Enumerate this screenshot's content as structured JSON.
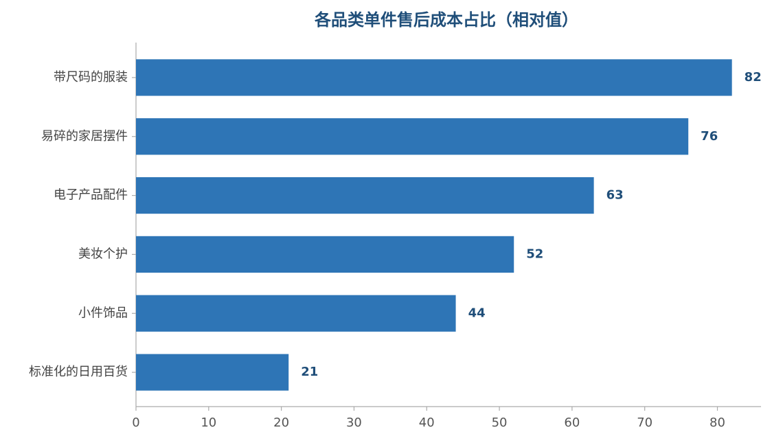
{
  "chart_data": {
    "type": "barh",
    "title": "各品类单件售后成本占比（相对值）",
    "categories": [
      "带尺码的服装",
      "易碎的家居摆件",
      "电子产品配件",
      "美妆个护",
      "小件饰品",
      "标准化的日用百货"
    ],
    "values": [
      82,
      76,
      63,
      52,
      44,
      21
    ],
    "color": "#2e75b6",
    "xlim": [
      0,
      86
    ],
    "xticks": [
      0,
      10,
      20,
      30,
      40,
      50,
      60,
      70,
      80
    ],
    "grid": false
  }
}
